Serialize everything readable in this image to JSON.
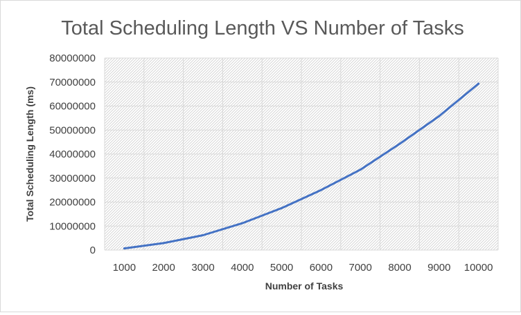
{
  "chart_data": {
    "type": "line",
    "title": "Total Scheduling Length VS Number of Tasks",
    "xlabel": "Number of Tasks",
    "ylabel": "Total Scheduling Length (ms)",
    "ylim": [
      0,
      80000000
    ],
    "yticks": [
      "0",
      "10000000",
      "20000000",
      "30000000",
      "40000000",
      "50000000",
      "60000000",
      "70000000",
      "80000000"
    ],
    "categories": [
      "1000",
      "2000",
      "3000",
      "4000",
      "5000",
      "6000",
      "7000",
      "8000",
      "9000",
      "10000"
    ],
    "series": [
      {
        "values": [
          700000,
          2900000,
          6200000,
          11200000,
          17500000,
          25000000,
          33500000,
          44300000,
          55800000,
          69300000
        ],
        "color": "#4472c4"
      }
    ],
    "grid": true,
    "plot_background": "diagonal hatch pattern",
    "legend": "none"
  }
}
